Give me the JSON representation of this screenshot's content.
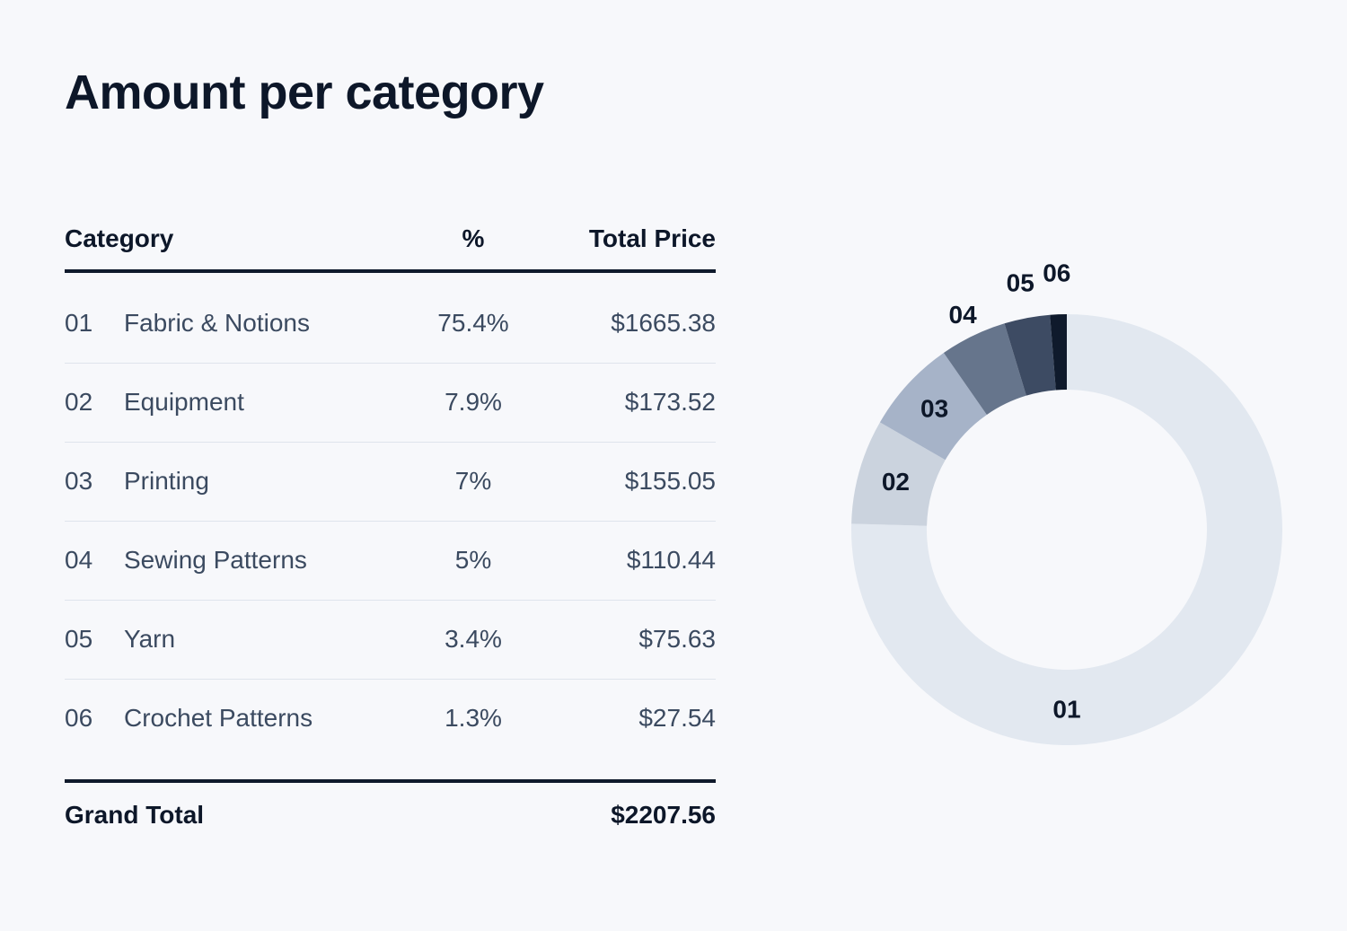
{
  "title": "Amount per category",
  "table": {
    "headers": {
      "category": "Category",
      "percent": "%",
      "total_price": "Total Price"
    },
    "rows": [
      {
        "num": "01",
        "name": "Fabric & Notions",
        "pct": "75.4%",
        "price": "$1665.38"
      },
      {
        "num": "02",
        "name": "Equipment",
        "pct": "7.9%",
        "price": "$173.52"
      },
      {
        "num": "03",
        "name": "Printing",
        "pct": "7%",
        "price": "$155.05"
      },
      {
        "num": "04",
        "name": "Sewing Patterns",
        "pct": "5%",
        "price": "$110.44"
      },
      {
        "num": "05",
        "name": "Yarn",
        "pct": "3.4%",
        "price": "$75.63"
      },
      {
        "num": "06",
        "name": "Crochet Patterns",
        "pct": "1.3%",
        "price": "$27.54"
      }
    ],
    "footer": {
      "label": "Grand Total",
      "total": "$2207.56"
    }
  },
  "chart_data": {
    "type": "pie",
    "style": "donut",
    "title": "",
    "categories": [
      "01",
      "02",
      "03",
      "04",
      "05",
      "06"
    ],
    "values": [
      1665.38,
      173.52,
      155.05,
      110.44,
      75.63,
      27.54
    ],
    "percentages": [
      75.4,
      7.9,
      7,
      5,
      3.4,
      1.3
    ],
    "colors": [
      "#e2e8f0",
      "#cbd3de",
      "#a6b3c8",
      "#66758c",
      "#3d4b63",
      "#0f1a2c"
    ],
    "start_angle": "top",
    "direction": "clockwise",
    "legend": "none"
  }
}
